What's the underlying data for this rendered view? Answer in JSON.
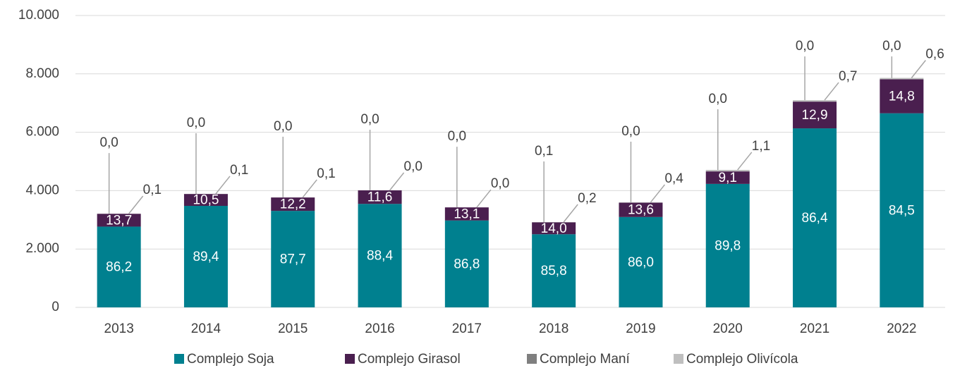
{
  "chart_data": {
    "type": "stacked_bar",
    "categories": [
      "2013",
      "2014",
      "2015",
      "2016",
      "2017",
      "2018",
      "2019",
      "2020",
      "2021",
      "2022"
    ],
    "ylim": [
      0,
      10000
    ],
    "yticks": [
      0,
      {
        "value": 2000,
        "label": "2.000"
      },
      {
        "value": 4000,
        "label": "4.000"
      },
      {
        "value": 6000,
        "label": "6.000"
      },
      {
        "value": 8000,
        "label": "8.000"
      },
      {
        "value": 10000,
        "label": "10.000"
      }
    ],
    "grid": true,
    "legend": "bottom",
    "series": [
      {
        "name": "Complejo Soja",
        "color": "#00808f",
        "values": [
          2767,
          3478,
          3306,
          3545,
          2977,
          2505,
          3096,
          4230,
          6134,
          6650
        ],
        "shares": [
          86.2,
          89.4,
          87.7,
          88.4,
          86.8,
          85.8,
          86.0,
          89.8,
          86.4,
          84.5
        ],
        "share_labels": [
          "86,2",
          "89,4",
          "87,7",
          "88,4",
          "86,8",
          "85,8",
          "86,0",
          "89,8",
          "86,4",
          "84,5"
        ]
      },
      {
        "name": "Complejo Girasol",
        "color": "#4a1f4f",
        "values": [
          440,
          408,
          460,
          465,
          449,
          409,
          490,
          429,
          916,
          1165
        ],
        "shares": [
          13.7,
          10.5,
          12.2,
          11.6,
          13.1,
          14.0,
          13.6,
          9.1,
          12.9,
          14.8
        ],
        "share_labels": [
          "13,7",
          "10,5",
          "12,2",
          "11,6",
          "13,1",
          "14,0",
          "13,6",
          "9,1",
          "12,9",
          "14,8"
        ]
      },
      {
        "name": "Complejo Maní",
        "color": "#7f7f7f",
        "values": [
          0,
          0,
          0,
          0,
          0,
          3,
          0,
          0,
          0,
          0
        ],
        "shares": [
          0,
          0,
          0,
          0,
          0,
          0.1,
          0,
          0,
          0,
          0
        ],
        "share_labels": [
          "0,0",
          "0,0",
          "0,0",
          "0,0",
          "0,0",
          "0,1",
          "0,0",
          "0,0",
          "0,0",
          "0,0"
        ]
      },
      {
        "name": "Complejo Olivícola",
        "color": "#bfbfbf",
        "values": [
          3,
          4,
          4,
          0,
          0,
          6,
          14,
          52,
          50,
          47
        ],
        "shares": [
          0.1,
          0.1,
          0.1,
          0,
          0,
          0.2,
          0.4,
          1.1,
          0.7,
          0.6
        ],
        "share_labels": [
          "0,1",
          "0,1",
          "0,1",
          "0,0",
          "0,0",
          "0,2",
          "0,4",
          "1,1",
          "0,7",
          "0,6"
        ]
      }
    ]
  }
}
